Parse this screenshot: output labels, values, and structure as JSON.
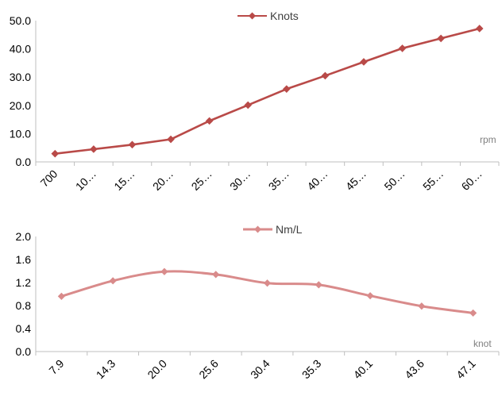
{
  "chart_data": [
    {
      "type": "line",
      "categories": [
        "700",
        "10…",
        "15…",
        "20…",
        "25…",
        "30…",
        "35…",
        "40…",
        "45…",
        "50…",
        "55…",
        "60…"
      ],
      "series": [
        {
          "name": "Knots",
          "color": "#b94a48",
          "marker": "diamond",
          "values": [
            2.9,
            4.5,
            6.1,
            8.0,
            14.5,
            20.1,
            25.8,
            30.5,
            35.4,
            40.2,
            43.7,
            47.2
          ]
        }
      ],
      "xlabel": "rpm",
      "ylim": [
        0,
        50
      ],
      "yticks": [
        "0.0",
        "10.0",
        "20.0",
        "30.0",
        "40.0",
        "50.0"
      ],
      "grid": false,
      "legend": "top-center",
      "smooth": false
    },
    {
      "type": "line",
      "categories": [
        "7.9",
        "14.3",
        "20.0",
        "25.6",
        "30.4",
        "35.3",
        "40.1",
        "43.6",
        "47.1"
      ],
      "series": [
        {
          "name": "Nm/L",
          "color": "#d98b8b",
          "marker": "diamond",
          "values": [
            0.96,
            1.23,
            1.39,
            1.34,
            1.19,
            1.16,
            0.97,
            0.79,
            0.67
          ]
        }
      ],
      "xlabel": "knot",
      "ylim": [
        0,
        2
      ],
      "yticks": [
        "0.0",
        "0.4",
        "0.8",
        "1.2",
        "1.6",
        "2.0"
      ],
      "grid": false,
      "legend": "top-center",
      "smooth": true
    }
  ]
}
